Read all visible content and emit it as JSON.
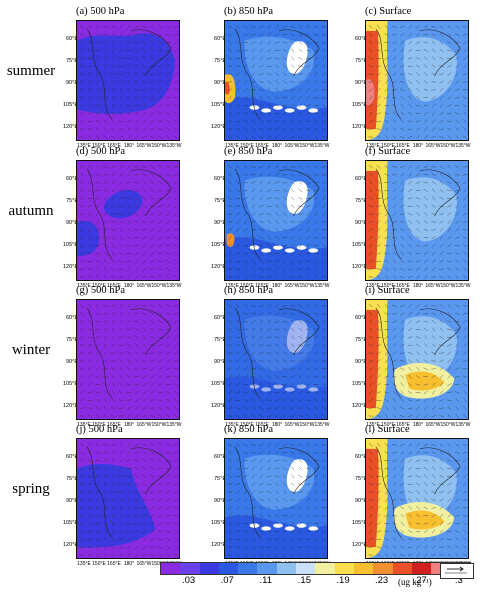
{
  "rows": [
    {
      "label": "summer",
      "panels": [
        {
          "title": "(a) 500 hPa",
          "kind": "p500",
          "season": "summer"
        },
        {
          "title": "(b) 850 hPa",
          "kind": "p850",
          "season": "summer"
        },
        {
          "title": "(c) Surface",
          "kind": "surf",
          "season": "summer"
        }
      ]
    },
    {
      "label": "autumn",
      "panels": [
        {
          "title": "(d) 500 hPa",
          "kind": "p500",
          "season": "autumn"
        },
        {
          "title": "(e) 850 hPa",
          "kind": "p850",
          "season": "autumn"
        },
        {
          "title": "(f) Surface",
          "kind": "surf",
          "season": "autumn"
        }
      ]
    },
    {
      "label": "winter",
      "panels": [
        {
          "title": "(g) 500 hPa",
          "kind": "p500",
          "season": "winter"
        },
        {
          "title": "(h) 850 hPa",
          "kind": "p850",
          "season": "winter"
        },
        {
          "title": "(i) Surface",
          "kind": "surf",
          "season": "winter"
        }
      ]
    },
    {
      "label": "spring",
      "panels": [
        {
          "title": "(j) 500 hPa",
          "kind": "p500",
          "season": "spring"
        },
        {
          "title": "(k) 850 hPa",
          "kind": "p850",
          "season": "spring"
        },
        {
          "title": "(l) Surface",
          "kind": "surf",
          "season": "spring"
        }
      ]
    }
  ],
  "lat_ticks": [
    "60°E",
    "75°E",
    "90°E",
    "105°E",
    "120°E"
  ],
  "lon_ticks": [
    "135°E",
    "150°E",
    "165°E",
    "180°",
    "165°W",
    "150°W",
    "135°W"
  ],
  "colorbar": {
    "colors": [
      "#8a2be2",
      "#6a40e8",
      "#3a3ae0",
      "#2a58e0",
      "#3878e8",
      "#5a98f0",
      "#90c0f0",
      "#c8e0f8",
      "#f0f0a0",
      "#f8e050",
      "#f8c030",
      "#f09030",
      "#e85028",
      "#d02020",
      "#f08080",
      "#f8c8c8"
    ],
    "labels": [
      ".03",
      ".07",
      ".11",
      ".15",
      ".19",
      ".23",
      ".27",
      ".3"
    ],
    "units": "(ug kg⁻¹)"
  }
}
